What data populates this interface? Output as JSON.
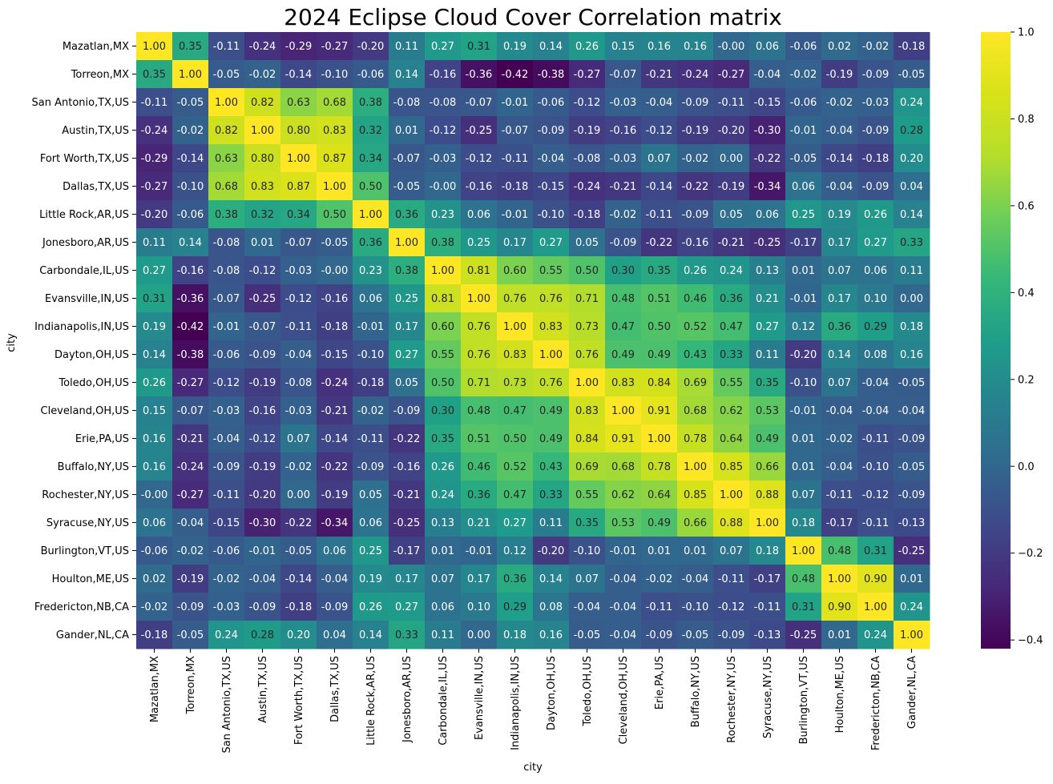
{
  "chart_data": {
    "type": "heatmap",
    "title": "2024 Eclipse Cloud Cover Correlation matrix",
    "xlabel": "city",
    "ylabel": "city",
    "colormap": "viridis",
    "colorbar": {
      "range": [
        -0.42,
        1.0
      ],
      "ticks": [
        "1.0",
        "0.8",
        "0.6",
        "0.4",
        "0.2",
        "0.0",
        "−0.2",
        "−0.4"
      ],
      "tick_values": [
        1.0,
        0.8,
        0.6,
        0.4,
        0.2,
        0.0,
        -0.2,
        -0.4
      ]
    },
    "categories": [
      "Mazatlan,MX",
      "Torreon,MX",
      "San Antonio,TX,US",
      "Austin,TX,US",
      "Fort Worth,TX,US",
      "Dallas,TX,US",
      "Little Rock,AR,US",
      "Jonesboro,AR,US",
      "Carbondale,IL,US",
      "Evansville,IN,US",
      "Indianapolis,IN,US",
      "Dayton,OH,US",
      "Toledo,OH,US",
      "Cleveland,OH,US",
      "Erie,PA,US",
      "Buffalo,NY,US",
      "Rochester,NY,US",
      "Syracuse,NY,US",
      "Burlington,VT,US",
      "Houlton,ME,US",
      "Fredericton,NB,CA",
      "Gander,NL,CA"
    ],
    "matrix": [
      [
        "1.00",
        "0.35",
        "-0.11",
        "-0.24",
        "-0.29",
        "-0.27",
        "-0.20",
        "0.11",
        "0.27",
        "0.31",
        "0.19",
        "0.14",
        "0.26",
        "0.15",
        "0.16",
        "0.16",
        "-0.00",
        "0.06",
        "-0.06",
        "0.02",
        "-0.02",
        "-0.18"
      ],
      [
        "0.35",
        "1.00",
        "-0.05",
        "-0.02",
        "-0.14",
        "-0.10",
        "-0.06",
        "0.14",
        "-0.16",
        "-0.36",
        "-0.42",
        "-0.38",
        "-0.27",
        "-0.07",
        "-0.21",
        "-0.24",
        "-0.27",
        "-0.04",
        "-0.02",
        "-0.19",
        "-0.09",
        "-0.05"
      ],
      [
        "-0.11",
        "-0.05",
        "1.00",
        "0.82",
        "0.63",
        "0.68",
        "0.38",
        "-0.08",
        "-0.08",
        "-0.07",
        "-0.01",
        "-0.06",
        "-0.12",
        "-0.03",
        "-0.04",
        "-0.09",
        "-0.11",
        "-0.15",
        "-0.06",
        "-0.02",
        "-0.03",
        "0.24"
      ],
      [
        "-0.24",
        "-0.02",
        "0.82",
        "1.00",
        "0.80",
        "0.83",
        "0.32",
        "0.01",
        "-0.12",
        "-0.25",
        "-0.07",
        "-0.09",
        "-0.19",
        "-0.16",
        "-0.12",
        "-0.19",
        "-0.20",
        "-0.30",
        "-0.01",
        "-0.04",
        "-0.09",
        "0.28"
      ],
      [
        "-0.29",
        "-0.14",
        "0.63",
        "0.80",
        "1.00",
        "0.87",
        "0.34",
        "-0.07",
        "-0.03",
        "-0.12",
        "-0.11",
        "-0.04",
        "-0.08",
        "-0.03",
        "0.07",
        "-0.02",
        "0.00",
        "-0.22",
        "-0.05",
        "-0.14",
        "-0.18",
        "0.20"
      ],
      [
        "-0.27",
        "-0.10",
        "0.68",
        "0.83",
        "0.87",
        "1.00",
        "0.50",
        "-0.05",
        "-0.00",
        "-0.16",
        "-0.18",
        "-0.15",
        "-0.24",
        "-0.21",
        "-0.14",
        "-0.22",
        "-0.19",
        "-0.34",
        "0.06",
        "-0.04",
        "-0.09",
        "0.04"
      ],
      [
        "-0.20",
        "-0.06",
        "0.38",
        "0.32",
        "0.34",
        "0.50",
        "1.00",
        "0.36",
        "0.23",
        "0.06",
        "-0.01",
        "-0.10",
        "-0.18",
        "-0.02",
        "-0.11",
        "-0.09",
        "0.05",
        "0.06",
        "0.25",
        "0.19",
        "0.26",
        "0.14"
      ],
      [
        "0.11",
        "0.14",
        "-0.08",
        "0.01",
        "-0.07",
        "-0.05",
        "0.36",
        "1.00",
        "0.38",
        "0.25",
        "0.17",
        "0.27",
        "0.05",
        "-0.09",
        "-0.22",
        "-0.16",
        "-0.21",
        "-0.25",
        "-0.17",
        "0.17",
        "0.27",
        "0.33"
      ],
      [
        "0.27",
        "-0.16",
        "-0.08",
        "-0.12",
        "-0.03",
        "-0.00",
        "0.23",
        "0.38",
        "1.00",
        "0.81",
        "0.60",
        "0.55",
        "0.50",
        "0.30",
        "0.35",
        "0.26",
        "0.24",
        "0.13",
        "0.01",
        "0.07",
        "0.06",
        "0.11"
      ],
      [
        "0.31",
        "-0.36",
        "-0.07",
        "-0.25",
        "-0.12",
        "-0.16",
        "0.06",
        "0.25",
        "0.81",
        "1.00",
        "0.76",
        "0.76",
        "0.71",
        "0.48",
        "0.51",
        "0.46",
        "0.36",
        "0.21",
        "-0.01",
        "0.17",
        "0.10",
        "0.00"
      ],
      [
        "0.19",
        "-0.42",
        "-0.01",
        "-0.07",
        "-0.11",
        "-0.18",
        "-0.01",
        "0.17",
        "0.60",
        "0.76",
        "1.00",
        "0.83",
        "0.73",
        "0.47",
        "0.50",
        "0.52",
        "0.47",
        "0.27",
        "0.12",
        "0.36",
        "0.29",
        "0.18"
      ],
      [
        "0.14",
        "-0.38",
        "-0.06",
        "-0.09",
        "-0.04",
        "-0.15",
        "-0.10",
        "0.27",
        "0.55",
        "0.76",
        "0.83",
        "1.00",
        "0.76",
        "0.49",
        "0.49",
        "0.43",
        "0.33",
        "0.11",
        "-0.20",
        "0.14",
        "0.08",
        "0.16"
      ],
      [
        "0.26",
        "-0.27",
        "-0.12",
        "-0.19",
        "-0.08",
        "-0.24",
        "-0.18",
        "0.05",
        "0.50",
        "0.71",
        "0.73",
        "0.76",
        "1.00",
        "0.83",
        "0.84",
        "0.69",
        "0.55",
        "0.35",
        "-0.10",
        "0.07",
        "-0.04",
        "-0.05"
      ],
      [
        "0.15",
        "-0.07",
        "-0.03",
        "-0.16",
        "-0.03",
        "-0.21",
        "-0.02",
        "-0.09",
        "0.30",
        "0.48",
        "0.47",
        "0.49",
        "0.83",
        "1.00",
        "0.91",
        "0.68",
        "0.62",
        "0.53",
        "-0.01",
        "-0.04",
        "-0.04",
        "-0.04"
      ],
      [
        "0.16",
        "-0.21",
        "-0.04",
        "-0.12",
        "0.07",
        "-0.14",
        "-0.11",
        "-0.22",
        "0.35",
        "0.51",
        "0.50",
        "0.49",
        "0.84",
        "0.91",
        "1.00",
        "0.78",
        "0.64",
        "0.49",
        "0.01",
        "-0.02",
        "-0.11",
        "-0.09"
      ],
      [
        "0.16",
        "-0.24",
        "-0.09",
        "-0.19",
        "-0.02",
        "-0.22",
        "-0.09",
        "-0.16",
        "0.26",
        "0.46",
        "0.52",
        "0.43",
        "0.69",
        "0.68",
        "0.78",
        "1.00",
        "0.85",
        "0.66",
        "0.01",
        "-0.04",
        "-0.10",
        "-0.05"
      ],
      [
        "-0.00",
        "-0.27",
        "-0.11",
        "-0.20",
        "0.00",
        "-0.19",
        "0.05",
        "-0.21",
        "0.24",
        "0.36",
        "0.47",
        "0.33",
        "0.55",
        "0.62",
        "0.64",
        "0.85",
        "1.00",
        "0.88",
        "0.07",
        "-0.11",
        "-0.12",
        "-0.09"
      ],
      [
        "0.06",
        "-0.04",
        "-0.15",
        "-0.30",
        "-0.22",
        "-0.34",
        "0.06",
        "-0.25",
        "0.13",
        "0.21",
        "0.27",
        "0.11",
        "0.35",
        "0.53",
        "0.49",
        "0.66",
        "0.88",
        "1.00",
        "0.18",
        "-0.17",
        "-0.11",
        "-0.13"
      ],
      [
        "-0.06",
        "-0.02",
        "-0.06",
        "-0.01",
        "-0.05",
        "0.06",
        "0.25",
        "-0.17",
        "0.01",
        "-0.01",
        "0.12",
        "-0.20",
        "-0.10",
        "-0.01",
        "0.01",
        "0.01",
        "0.07",
        "0.18",
        "1.00",
        "0.48",
        "0.31",
        "-0.25"
      ],
      [
        "0.02",
        "-0.19",
        "-0.02",
        "-0.04",
        "-0.14",
        "-0.04",
        "0.19",
        "0.17",
        "0.07",
        "0.17",
        "0.36",
        "0.14",
        "0.07",
        "-0.04",
        "-0.02",
        "-0.04",
        "-0.11",
        "-0.17",
        "0.48",
        "1.00",
        "0.90",
        "0.01"
      ],
      [
        "-0.02",
        "-0.09",
        "-0.03",
        "-0.09",
        "-0.18",
        "-0.09",
        "0.26",
        "0.27",
        "0.06",
        "0.10",
        "0.29",
        "0.08",
        "-0.04",
        "-0.04",
        "-0.11",
        "-0.10",
        "-0.12",
        "-0.11",
        "0.31",
        "0.90",
        "1.00",
        "0.24"
      ],
      [
        "-0.18",
        "-0.05",
        "0.24",
        "0.28",
        "0.20",
        "0.04",
        "0.14",
        "0.33",
        "0.11",
        "0.00",
        "0.18",
        "0.16",
        "-0.05",
        "-0.04",
        "-0.09",
        "-0.05",
        "-0.09",
        "-0.13",
        "-0.25",
        "0.01",
        "0.24",
        "1.00"
      ]
    ]
  }
}
